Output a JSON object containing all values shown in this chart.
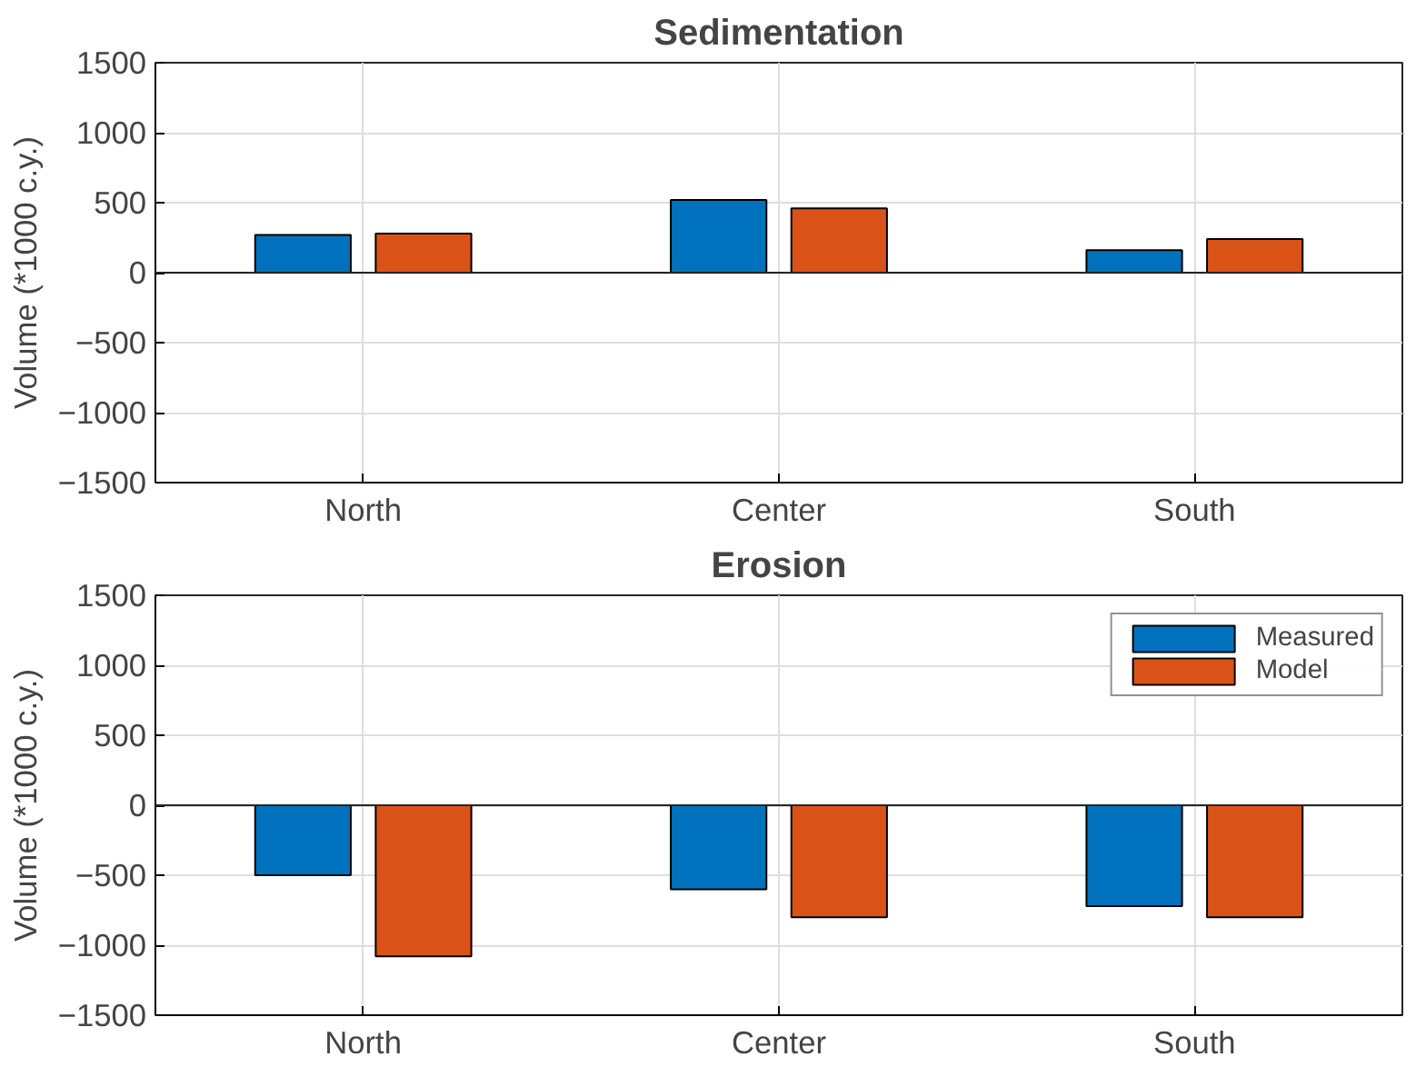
{
  "chart_data": [
    {
      "type": "bar",
      "title": "Sedimentation",
      "ylabel": "Volume (*1000 c.y.)",
      "categories": [
        "North",
        "Center",
        "South"
      ],
      "series": [
        {
          "color": "#0072bd",
          "values": [
            270,
            520,
            160
          ]
        },
        {
          "color": "#d95319",
          "values": [
            280,
            460,
            240
          ]
        }
      ],
      "ylim": [
        -1500,
        1500
      ],
      "yticks": [
        -1500,
        -1000,
        -500,
        0,
        500,
        1000,
        1500
      ],
      "grid": true,
      "legend": false
    },
    {
      "type": "bar",
      "title": "Erosion",
      "ylabel": "Volume (*1000 c.y.)",
      "categories": [
        "North",
        "Center",
        "South"
      ],
      "series": [
        {
          "name": "Measured",
          "color": "#0072bd",
          "values": [
            -500,
            -600,
            -720
          ]
        },
        {
          "name": "Model",
          "color": "#d95319",
          "values": [
            -1080,
            -800,
            -800
          ]
        }
      ],
      "ylim": [
        -1500,
        1500
      ],
      "yticks": [
        -1500,
        -1000,
        -500,
        0,
        500,
        1000,
        1500
      ],
      "grid": true,
      "legend": "top right"
    }
  ]
}
